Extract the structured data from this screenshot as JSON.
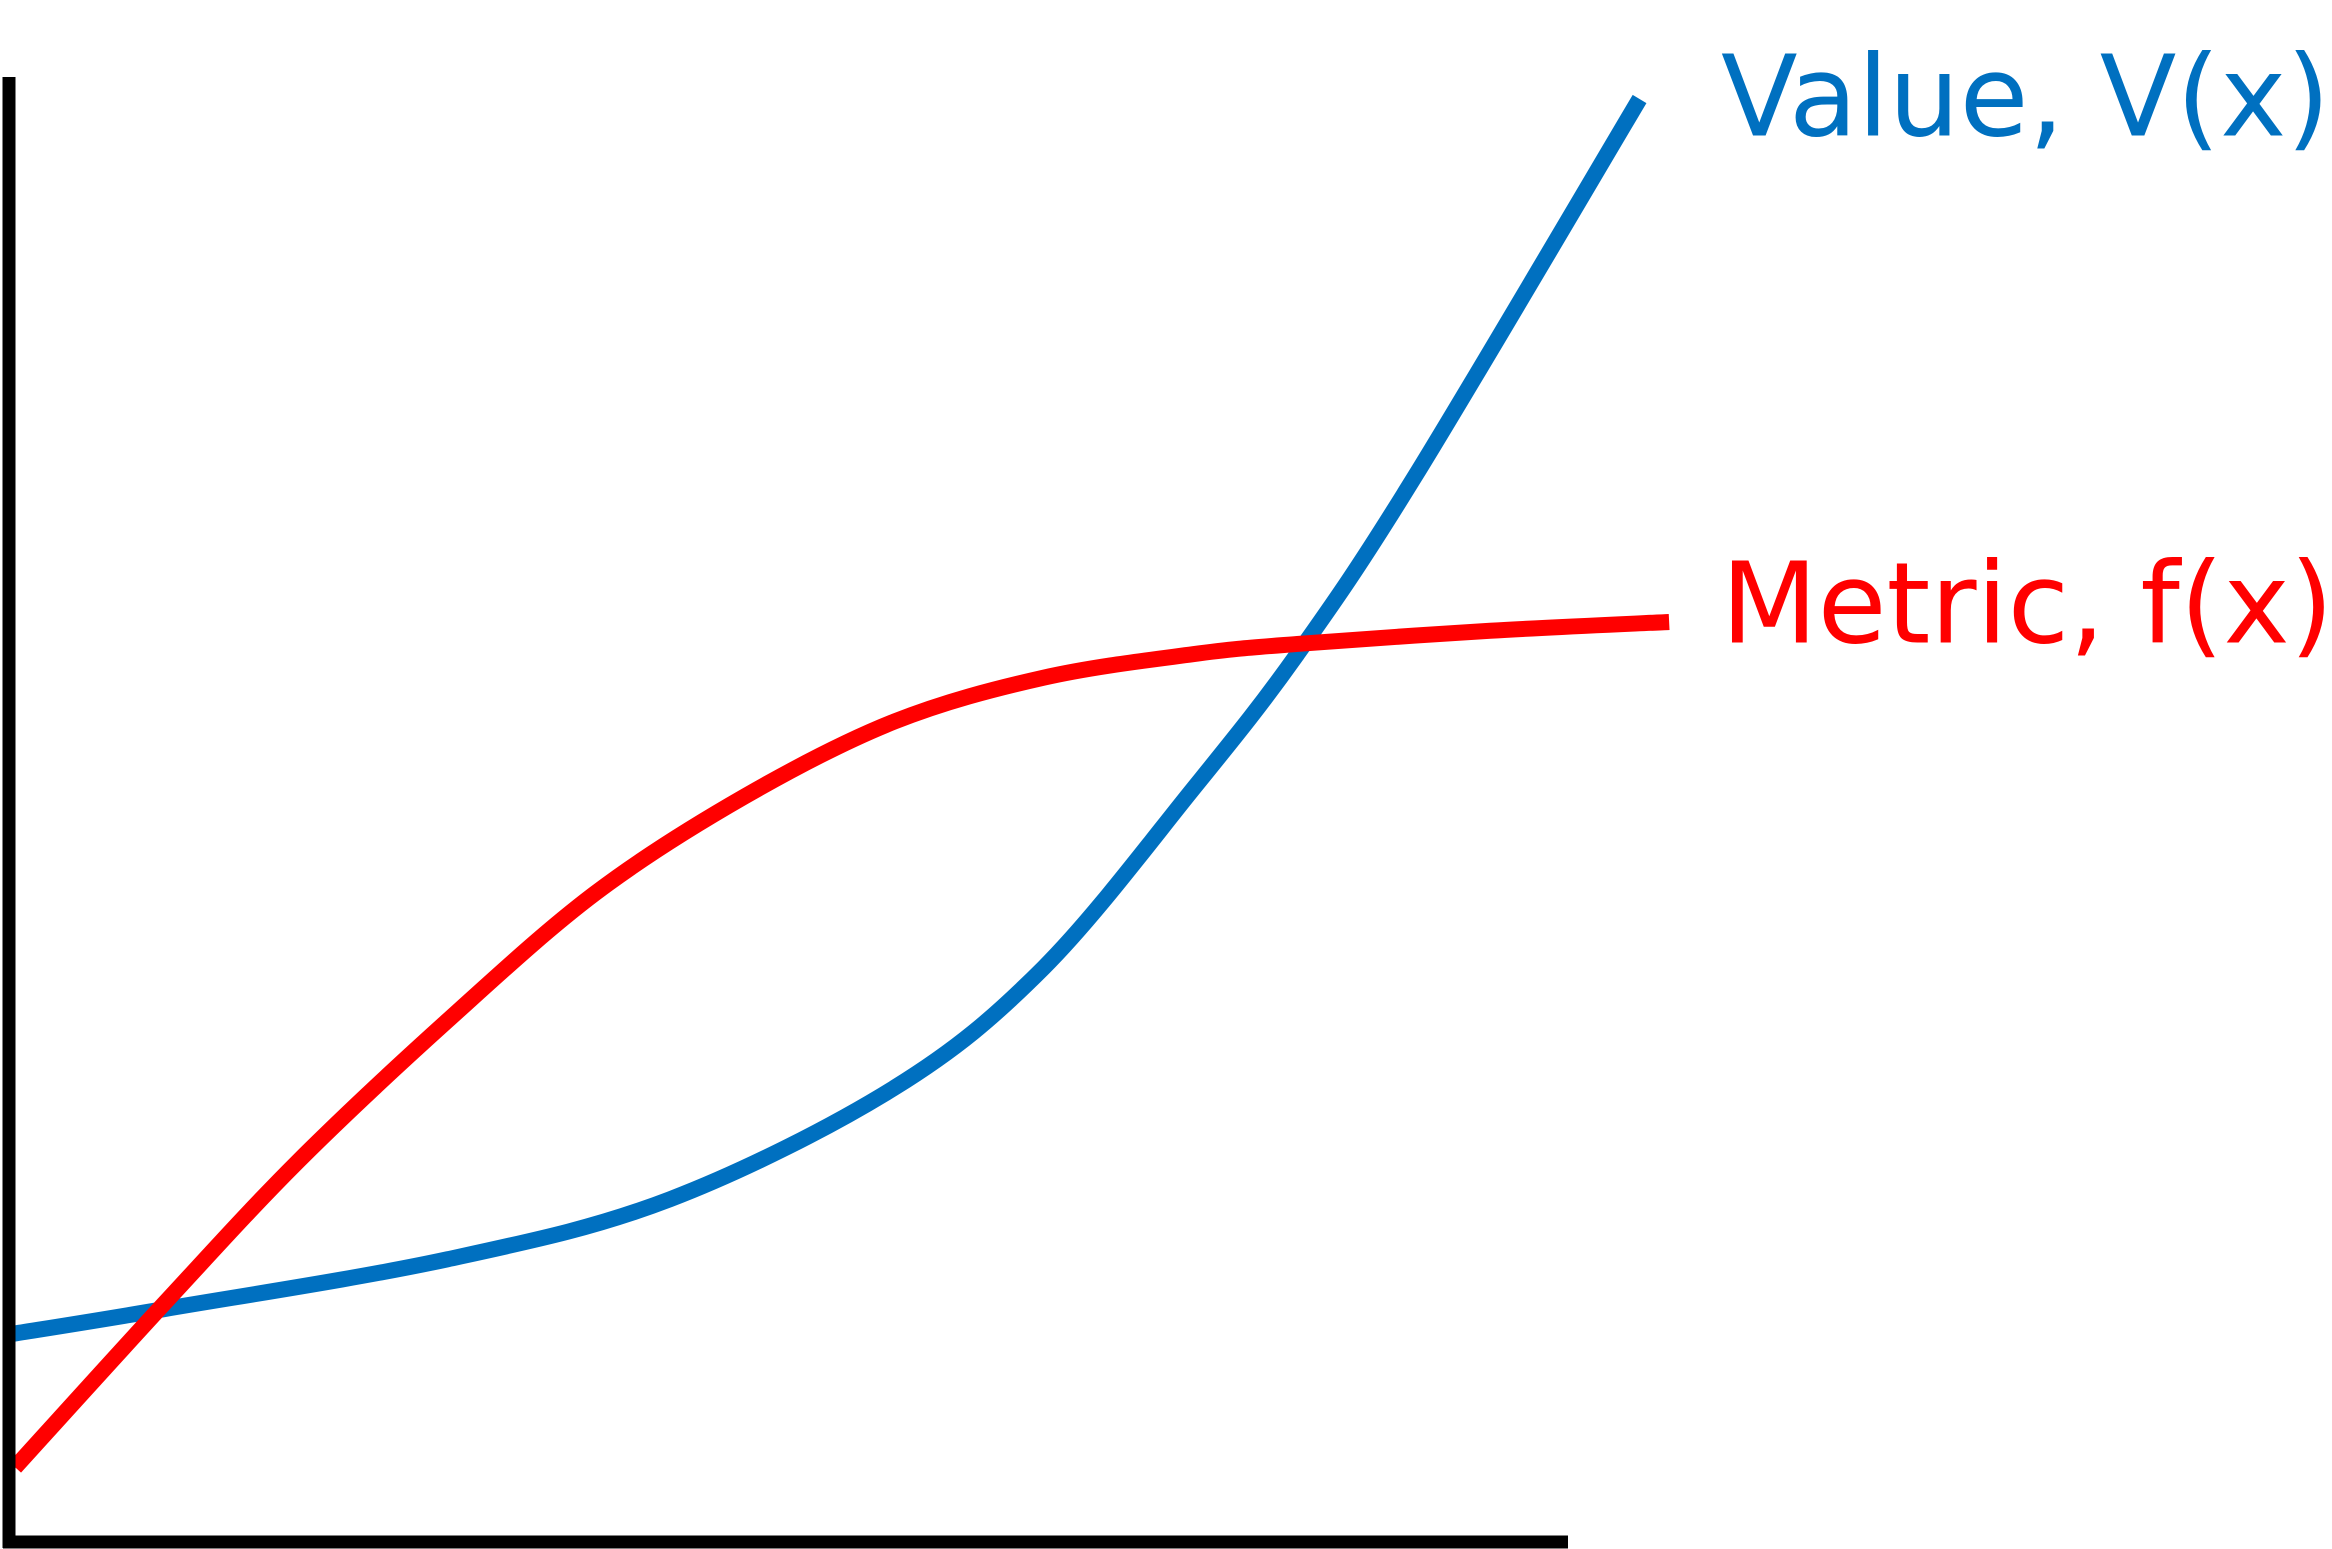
{
  "chart_data": {
    "type": "line",
    "xlim": [
      0,
      100
    ],
    "ylim": [
      0,
      100
    ],
    "series": [
      {
        "name": "Value, V(x)",
        "color": "#0070c0",
        "x": [
          0,
          9.8,
          28,
          42.3,
          56.7,
          66.3,
          75.9,
          82.6,
          90.2,
          104.6
        ],
        "values": [
          14.2,
          15.9,
          19.3,
          23.4,
          31,
          39.2,
          51.4,
          60.6,
          72.8,
          98.5
        ]
      },
      {
        "name": "Metric, f(x)",
        "color": "#ff0000",
        "x": [
          0.2,
          9.8,
          18.4,
          28,
          37.5,
          47.1,
          56.7,
          66.3,
          75.9,
          82.6,
          95,
          106.5
        ],
        "values": [
          5.1,
          16.3,
          26,
          35.6,
          44.3,
          50.9,
          56,
          59,
          60.6,
          61.3,
          62.2,
          62.8
        ]
      }
    ]
  }
}
